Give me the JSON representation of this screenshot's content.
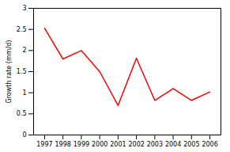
{
  "chart_data": {
    "type": "line",
    "x": [
      1997,
      1998,
      1999,
      2000,
      2001,
      2002,
      2003,
      2004,
      2005,
      2006
    ],
    "values": [
      2.53,
      1.8,
      2.0,
      1.5,
      0.7,
      1.82,
      0.82,
      1.1,
      0.82,
      1.02
    ],
    "color": "#ff0000",
    "ylabel": "Growth rate (mm/d)",
    "xlim": [
      1996.4,
      2006.6
    ],
    "xticks": [
      1997,
      1998,
      1999,
      2000,
      2001,
      2002,
      2003,
      2004,
      2005,
      2006
    ],
    "ylim": [
      0,
      3.0
    ],
    "yticks": [
      0,
      0.5,
      1.0,
      1.5,
      2.0,
      2.5,
      3.0
    ]
  }
}
